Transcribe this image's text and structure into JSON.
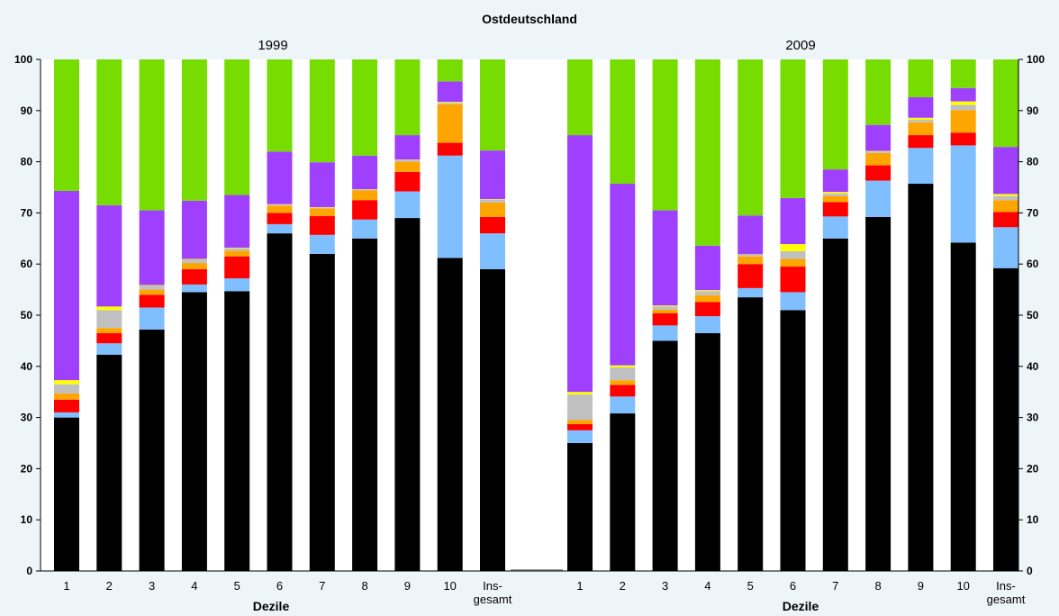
{
  "chart_data": {
    "type": "bar",
    "stacked": true,
    "title": "Ostdeutschland",
    "xlabel": "Dezile",
    "ylim": [
      0,
      100
    ],
    "yticks": [
      0,
      10,
      20,
      30,
      40,
      50,
      60,
      70,
      80,
      90,
      100
    ],
    "grid": false,
    "groups": [
      {
        "label": "1999",
        "categories": [
          "1",
          "2",
          "3",
          "4",
          "5",
          "6",
          "7",
          "8",
          "9",
          "10",
          "Ins-\ngesamt"
        ],
        "series": [
          {
            "color": "#000000",
            "values": [
              30,
              42.3,
              47.2,
              54.5,
              54.7,
              66,
              62,
              65,
              69,
              61.2,
              59
            ]
          },
          {
            "color": "#80bfff",
            "values": [
              1,
              2.2,
              4.3,
              1.5,
              2.5,
              1.8,
              3.7,
              3.7,
              5.2,
              20,
              7
            ]
          },
          {
            "color": "#ff0000",
            "values": [
              2.5,
              2,
              2.5,
              3,
              4.3,
              2.2,
              3.7,
              3.8,
              3.8,
              2.5,
              3.2
            ]
          },
          {
            "color": "#ffa500",
            "values": [
              1.2,
              1,
              1,
              1.2,
              1.1,
              1.4,
              1.5,
              1.9,
              2,
              7.5,
              2.8
            ]
          },
          {
            "color": "#c0c0c0",
            "values": [
              1.8,
              3.5,
              0.8,
              0.7,
              0.5,
              0.2,
              0.1,
              0.1,
              0.3,
              0.3,
              0.6
            ]
          },
          {
            "color": "#ffff00",
            "values": [
              0.8,
              0.7,
              0.1,
              0.1,
              0.1,
              0.1,
              0.1,
              0.1,
              0.1,
              0.2,
              0.1
            ]
          },
          {
            "color": "#a040ff",
            "values": [
              37,
              19.8,
              14.6,
              11.4,
              10.3,
              10.3,
              8.8,
              6.6,
              4.8,
              4,
              9.5
            ]
          },
          {
            "color": "#77dd00",
            "values": [
              25.7,
              28.5,
              29.5,
              27.6,
              26.5,
              18,
              20.1,
              18.8,
              14.8,
              4.3,
              17.8
            ]
          }
        ]
      },
      {
        "label": "2009",
        "categories": [
          "1",
          "2",
          "3",
          "4",
          "5",
          "6",
          "7",
          "8",
          "9",
          "10",
          "Ins-\ngesamt"
        ],
        "series": [
          {
            "color": "#000000",
            "values": [
              25,
              30.8,
              45,
              46.5,
              53.5,
              51,
              65,
              69.2,
              75.7,
              64.2,
              59.2
            ]
          },
          {
            "color": "#80bfff",
            "values": [
              2.5,
              3.3,
              3,
              3.3,
              1.8,
              3.5,
              4.3,
              7.1,
              7,
              19,
              8
            ]
          },
          {
            "color": "#ff0000",
            "values": [
              1.2,
              2.3,
              2.4,
              2.8,
              4.7,
              5,
              2.8,
              3,
              2.5,
              2.5,
              3
            ]
          },
          {
            "color": "#ffa500",
            "values": [
              0.8,
              0.9,
              0.7,
              1.3,
              1.5,
              1.5,
              1.2,
              2.4,
              2.5,
              4.4,
              2.3
            ]
          },
          {
            "color": "#c0c0c0",
            "values": [
              5,
              2.5,
              0.6,
              0.8,
              0.3,
              1.5,
              0.5,
              0.3,
              0.5,
              1,
              0.8
            ]
          },
          {
            "color": "#ffff00",
            "values": [
              0.5,
              0.4,
              0.2,
              0.2,
              0.1,
              1.4,
              0.3,
              0.1,
              0.4,
              0.7,
              0.4
            ]
          },
          {
            "color": "#a040ff",
            "values": [
              50.2,
              35.5,
              18.6,
              8.7,
              7.6,
              9,
              4.4,
              5.1,
              4,
              2.6,
              9.2
            ]
          },
          {
            "color": "#77dd00",
            "values": [
              14.8,
              24.3,
              29.5,
              36.4,
              30.5,
              27.1,
              21.5,
              12.8,
              7.4,
              5.6,
              17.1
            ]
          }
        ]
      }
    ]
  }
}
